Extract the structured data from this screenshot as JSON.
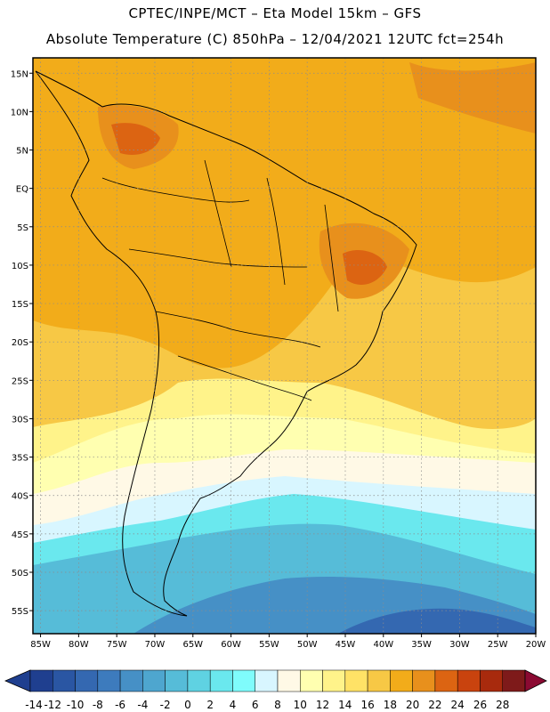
{
  "header": {
    "line1": "CPTEC/INPE/MCT –  Eta Model 15km – GFS",
    "line2": "Absolute Temperature (C) 850hPa – 12/04/2021 12UTC fct=254h"
  },
  "axes": {
    "lat_labels": [
      "15N",
      "10N",
      "5N",
      "EQ",
      "5S",
      "10S",
      "15S",
      "20S",
      "25S",
      "30S",
      "35S",
      "40S",
      "45S",
      "50S",
      "55S"
    ],
    "lon_labels": [
      "85W",
      "80W",
      "75W",
      "70W",
      "65W",
      "60W",
      "55W",
      "50W",
      "45W",
      "40W",
      "35W",
      "30W",
      "25W",
      "20W"
    ],
    "lat_range": [
      -58,
      17
    ],
    "lon_range": [
      -86,
      -20
    ]
  },
  "colorbar": {
    "ticks": [
      "-14",
      "-12",
      "-10",
      "-8",
      "-6",
      "-4",
      "-2",
      "0",
      "2",
      "4",
      "6",
      "8",
      "10",
      "12",
      "14",
      "16",
      "18",
      "20",
      "22",
      "24",
      "26",
      "28"
    ],
    "colors": [
      "#1f3f8f",
      "#2a56a3",
      "#3468b1",
      "#3d7bbd",
      "#4690c6",
      "#4ea6cf",
      "#56bcd8",
      "#5fd2e2",
      "#6ae8ee",
      "#7ffcfc",
      "#d8f6ff",
      "#fff9e6",
      "#ffffb0",
      "#fff38a",
      "#ffe266",
      "#f7c845",
      "#f2ac1a",
      "#e8901c",
      "#dc6412",
      "#c9430e",
      "#a82a0d",
      "#7e1a1a"
    ]
  },
  "field": {
    "variable": "temperature_850hPa_C",
    "zones": [
      {
        "name": "north-tropics",
        "approx_c": 17
      },
      {
        "name": "mid-latitudes",
        "approx_c": 9
      },
      {
        "name": "southern-ocean",
        "approx_c": -4
      }
    ]
  }
}
